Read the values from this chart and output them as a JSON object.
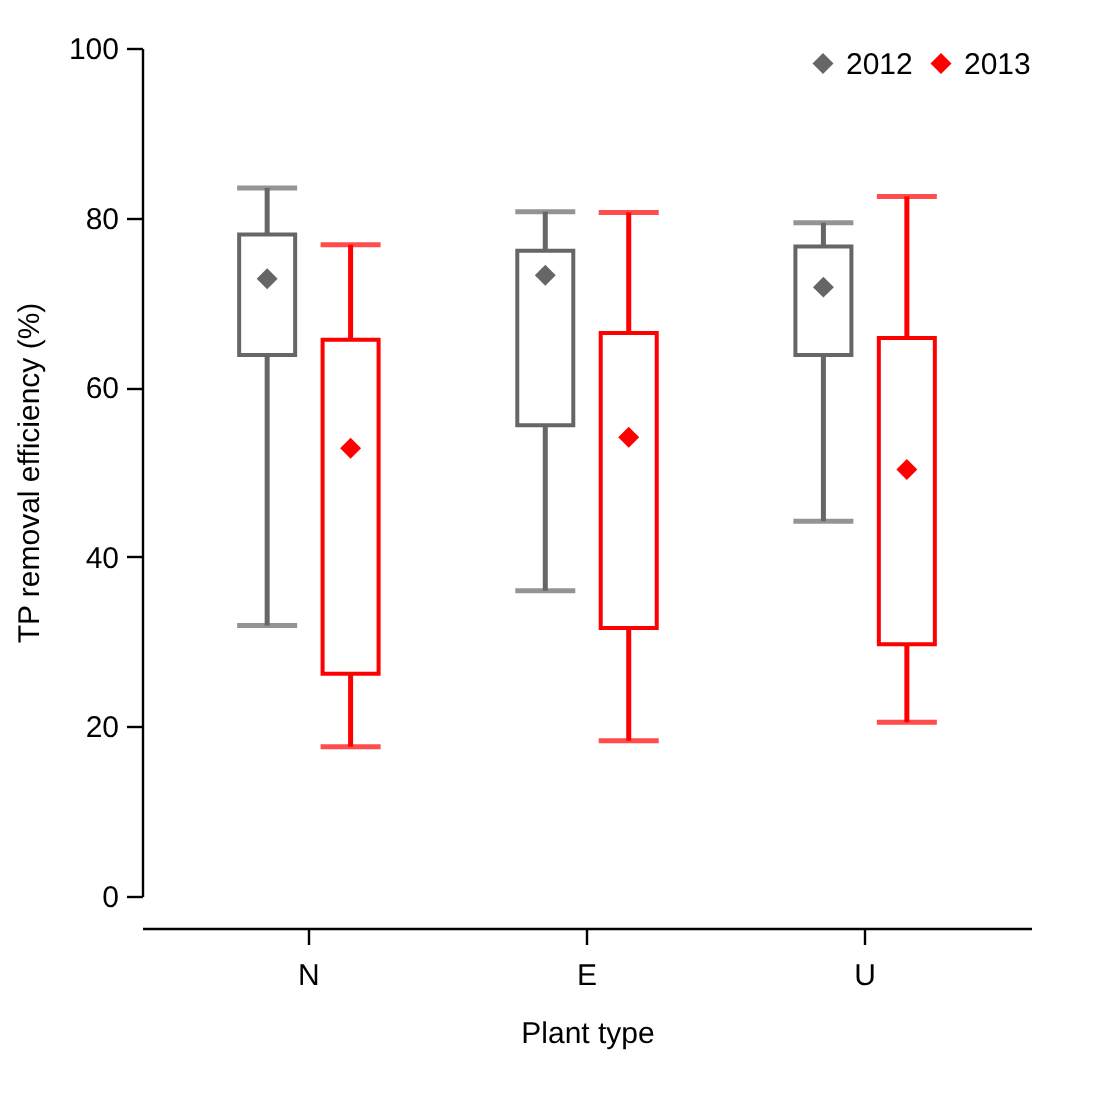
{
  "chart_data": {
    "type": "box",
    "xlabel": "Plant type",
    "ylabel": "TP removal efficiency (%)",
    "categories": [
      "N",
      "E",
      "U"
    ],
    "ylim": [
      0,
      100
    ],
    "yticks": [
      0,
      20,
      40,
      60,
      80,
      100
    ],
    "legend": "top right",
    "marker": "diamond",
    "series": [
      {
        "name": "2012",
        "color": "#666666",
        "boxes": [
          {
            "low": 31.9,
            "q1": 63.8,
            "q3": 78.0,
            "high": 83.5,
            "mean": 72.8
          },
          {
            "low": 36.0,
            "q1": 55.5,
            "q3": 76.1,
            "high": 80.7,
            "mean": 73.2
          },
          {
            "low": 44.2,
            "q1": 63.8,
            "q3": 76.6,
            "high": 79.4,
            "mean": 71.8
          }
        ]
      },
      {
        "name": "2013",
        "color": "#ff0000",
        "boxes": [
          {
            "low": 17.6,
            "q1": 26.2,
            "q3": 65.6,
            "high": 76.8,
            "mean": 52.8
          },
          {
            "low": 18.3,
            "q1": 31.6,
            "q3": 66.4,
            "high": 80.6,
            "mean": 54.1
          },
          {
            "low": 20.5,
            "q1": 29.7,
            "q3": 65.8,
            "high": 82.5,
            "mean": 50.3
          }
        ]
      }
    ]
  }
}
